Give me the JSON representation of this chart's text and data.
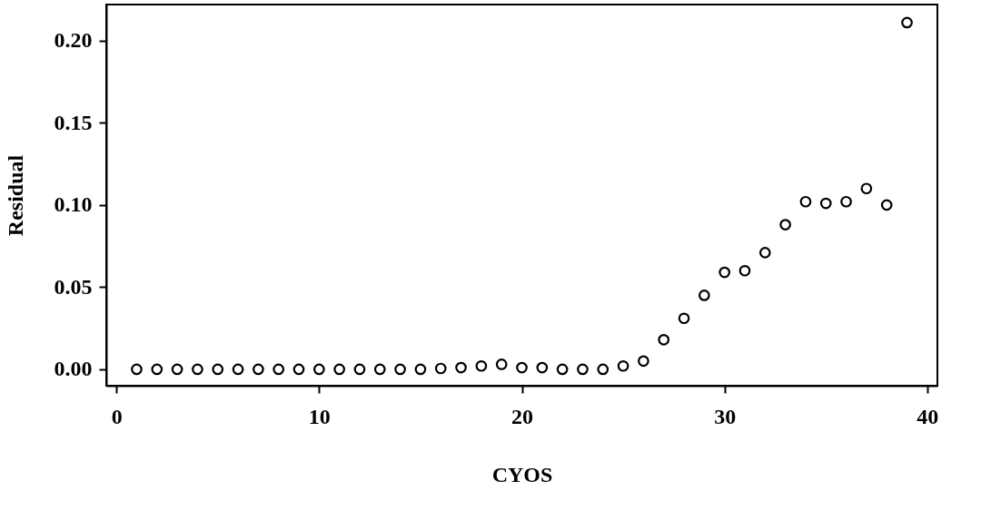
{
  "chart_data": {
    "type": "scatter",
    "xlabel": "CYOS",
    "ylabel": "Residual",
    "x": [
      1,
      2,
      3,
      4,
      5,
      6,
      7,
      8,
      9,
      10,
      11,
      12,
      13,
      14,
      15,
      16,
      17,
      18,
      19,
      20,
      21,
      22,
      23,
      24,
      25,
      26,
      27,
      28,
      29,
      30,
      31,
      32,
      33,
      34,
      35,
      36,
      37,
      38,
      39
    ],
    "series": [
      {
        "color": "#000000",
        "values": [
          0,
          0,
          0,
          0,
          0,
          0,
          0,
          0,
          0,
          0,
          0,
          0,
          0,
          0,
          0,
          0.0005,
          0.001,
          0.002,
          0.003,
          0.001,
          0.001,
          0,
          0,
          0,
          0.002,
          0.005,
          0.018,
          0.031,
          0.045,
          0.059,
          0.06,
          0.071,
          0.088,
          0.102,
          0.101,
          0.102,
          0.11,
          0.1,
          0.211
        ]
      }
    ],
    "xlim": [
      -0.5,
      40.5
    ],
    "ylim": [
      -0.01,
      0.222
    ],
    "xticks": [
      0,
      10,
      20,
      30,
      40
    ],
    "yticks": [
      {
        "value": 0,
        "label": "0.00"
      },
      {
        "value": 0.05,
        "label": "0.05"
      },
      {
        "value": 0.1,
        "label": "0.10"
      },
      {
        "value": 0.15,
        "label": "0.15"
      },
      {
        "value": 0.2,
        "label": "0.20"
      }
    ],
    "marker": "circle",
    "grid": false
  }
}
